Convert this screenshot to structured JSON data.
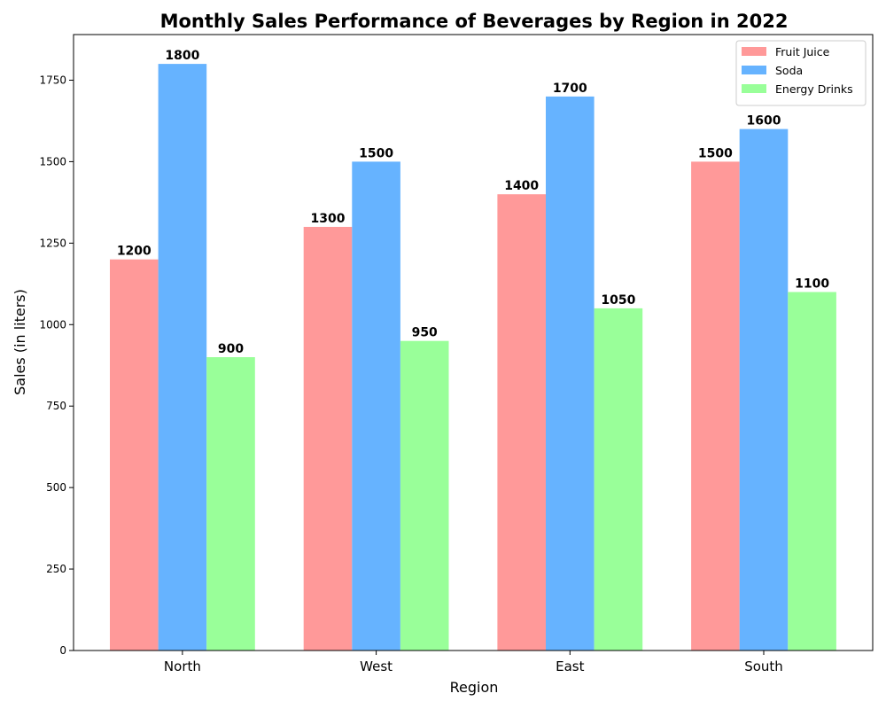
{
  "chart_data": {
    "type": "bar",
    "title": "Monthly Sales Performance of Beverages by Region in 2022",
    "xlabel": "Region",
    "ylabel": "Sales (in liters)",
    "categories": [
      "North",
      "West",
      "East",
      "South"
    ],
    "series": [
      {
        "name": "Fruit Juice",
        "color": "#ff9999",
        "values": [
          1200,
          1300,
          1400,
          1500
        ]
      },
      {
        "name": "Soda",
        "color": "#66b3ff",
        "values": [
          1800,
          1500,
          1700,
          1600
        ]
      },
      {
        "name": "Energy Drinks",
        "color": "#99ff99",
        "values": [
          900,
          950,
          1050,
          1100
        ]
      }
    ],
    "ylim": [
      0,
      1890
    ],
    "yticks": [
      0,
      250,
      500,
      750,
      1000,
      1250,
      1500,
      1750
    ],
    "grid": false,
    "legend_position": "top-right",
    "data_labels": true
  }
}
